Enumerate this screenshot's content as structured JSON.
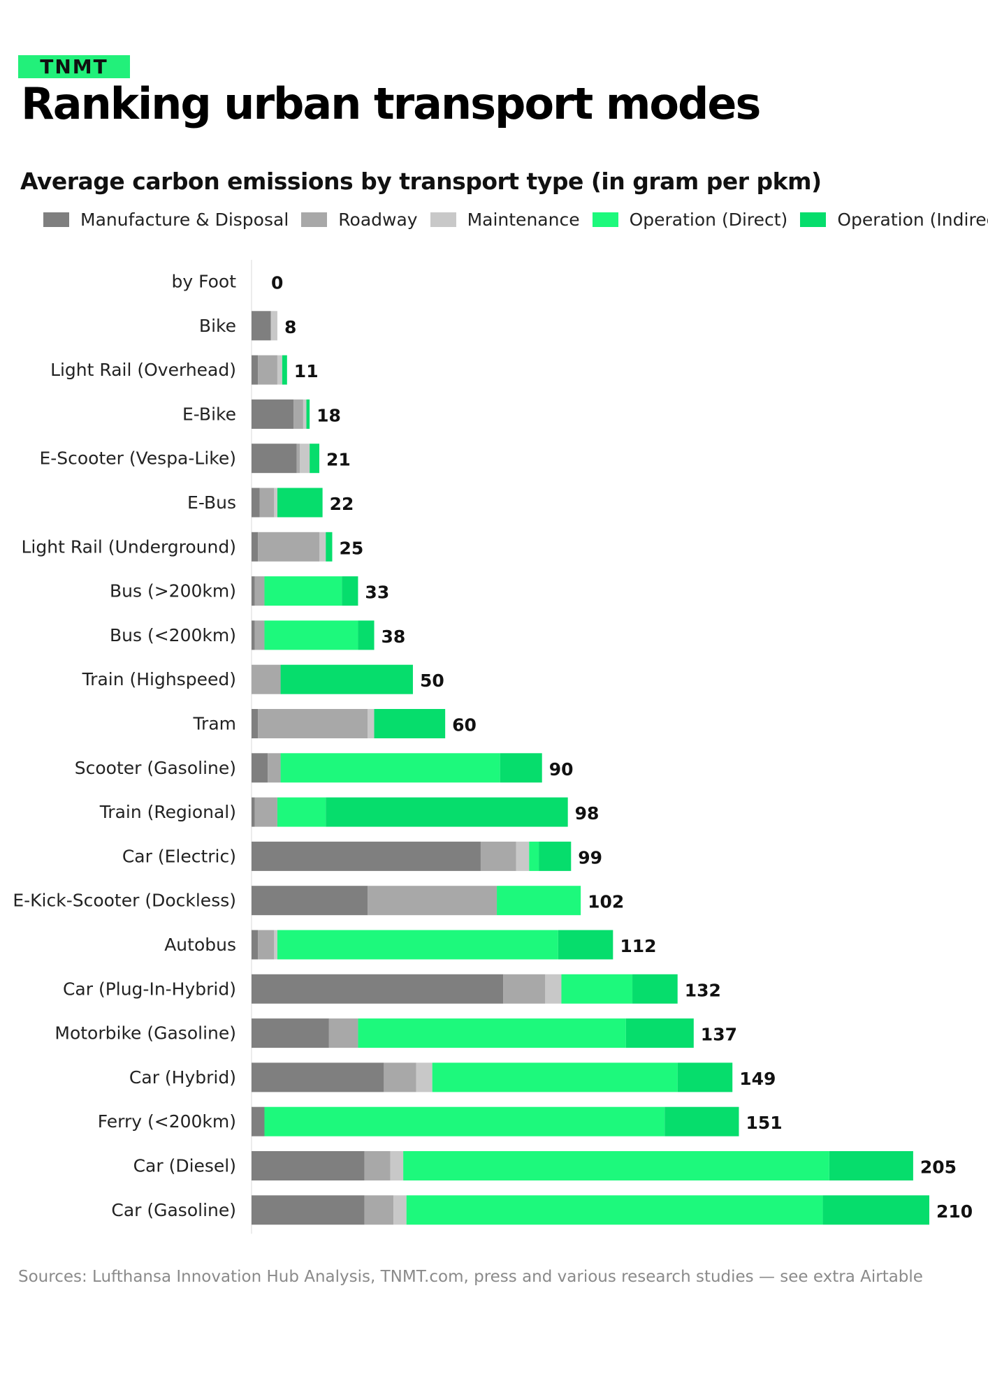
{
  "brand": {
    "logo_text": "TNMT",
    "accent": "#22f07a"
  },
  "title": "Ranking urban transport modes",
  "subtitle": "Average carbon emissions by transport type (in gram per pkm)",
  "source": "Sources: Lufthansa Innovation Hub Analysis, TNMT.com, press and various research studies — see extra Airtable",
  "chart_data": {
    "type": "bar",
    "orientation": "horizontal",
    "stacked": true,
    "xlim": [
      0,
      210
    ],
    "grid": false,
    "legend_position": "top",
    "series": [
      {
        "name": "Manufacture & Disposal",
        "color": "#7f7f7f"
      },
      {
        "name": "Roadway",
        "color": "#a8a8a8"
      },
      {
        "name": "Maintenance",
        "color": "#c8c8c8"
      },
      {
        "name": "Operation (Direct)",
        "color": "#1df97c"
      },
      {
        "name": "Operation (Indirect)",
        "color": "#06dd6c"
      }
    ],
    "rows": [
      {
        "label": "by Foot",
        "total": 0,
        "values": [
          0,
          0,
          0,
          0,
          0
        ]
      },
      {
        "label": "Bike",
        "total": 8,
        "values": [
          6,
          0,
          2,
          0,
          0
        ]
      },
      {
        "label": "Light Rail (Overhead)",
        "total": 11,
        "values": [
          2,
          6,
          1.5,
          0,
          1.5
        ]
      },
      {
        "label": "E-Bike",
        "total": 18,
        "values": [
          13,
          3,
          1,
          0,
          1
        ]
      },
      {
        "label": "E-Scooter (Vespa-Like)",
        "total": 21,
        "values": [
          14,
          1,
          3,
          0,
          3
        ]
      },
      {
        "label": "E-Bus",
        "total": 22,
        "values": [
          2.5,
          4.5,
          1,
          0,
          14
        ]
      },
      {
        "label": "Light Rail (Underground)",
        "total": 25,
        "values": [
          2,
          19,
          2,
          0,
          2
        ]
      },
      {
        "label": "Bus (>200km)",
        "total": 33,
        "values": [
          1,
          3,
          0,
          24,
          5
        ]
      },
      {
        "label": "Bus (<200km)",
        "total": 38,
        "values": [
          1,
          3,
          0,
          29,
          5
        ]
      },
      {
        "label": "Train (Highspeed)",
        "total": 50,
        "values": [
          0,
          9,
          0,
          0,
          41
        ]
      },
      {
        "label": "Tram",
        "total": 60,
        "values": [
          2,
          34,
          2,
          0,
          22
        ]
      },
      {
        "label": "Scooter (Gasoline)",
        "total": 90,
        "values": [
          5,
          4,
          0,
          68,
          13
        ]
      },
      {
        "label": "Train (Regional)",
        "total": 98,
        "values": [
          1,
          7,
          0,
          15,
          75
        ]
      },
      {
        "label": "Car (Electric)",
        "total": 99,
        "values": [
          71,
          11,
          4,
          3,
          10
        ]
      },
      {
        "label": "E-Kick-Scooter (Dockless)",
        "total": 102,
        "values": [
          36,
          40,
          0,
          26,
          0
        ]
      },
      {
        "label": "Autobus",
        "total": 112,
        "values": [
          2,
          5,
          1,
          87,
          17
        ]
      },
      {
        "label": "Car (Plug-In-Hybrid)",
        "total": 132,
        "values": [
          78,
          13,
          5,
          22,
          14
        ]
      },
      {
        "label": "Motorbike (Gasoline)",
        "total": 137,
        "values": [
          24,
          9,
          0,
          83,
          21
        ]
      },
      {
        "label": "Car (Hybrid)",
        "total": 149,
        "values": [
          41,
          10,
          5,
          76,
          17
        ]
      },
      {
        "label": "Ferry (<200km)",
        "total": 151,
        "values": [
          4,
          0,
          0,
          124,
          23
        ]
      },
      {
        "label": "Car (Diesel)",
        "total": 205,
        "values": [
          35,
          8,
          4,
          132,
          26
        ]
      },
      {
        "label": "Car (Gasoline)",
        "total": 210,
        "values": [
          35,
          9,
          4,
          129,
          33
        ]
      }
    ]
  }
}
